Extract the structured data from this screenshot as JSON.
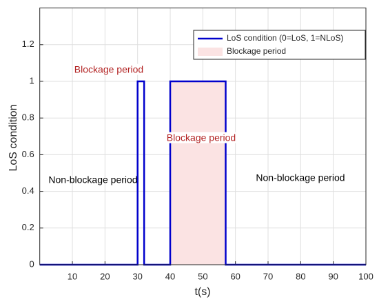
{
  "chart_data": {
    "type": "line",
    "x_label": "t(s)",
    "y_label": "LoS condition",
    "x": [
      0,
      30,
      30,
      32,
      32,
      40,
      40,
      57,
      57,
      100
    ],
    "series": [
      {
        "name": "LoS condition (0=LoS, 1=NLoS)",
        "color": "#0000cc",
        "values": [
          0,
          0,
          1,
          1,
          0,
          0,
          1,
          1,
          0,
          0
        ]
      }
    ],
    "spans": [
      {
        "name": "Blockage period",
        "color": "#fbe3e3",
        "x": [
          40,
          57
        ],
        "y": [
          0,
          1
        ]
      }
    ],
    "annotations": [
      {
        "text": "Blockage period",
        "color": "#b22222"
      },
      {
        "text": "Blockage period",
        "color": "#b22222"
      },
      {
        "text": "Non-blockage period",
        "color": "#000000"
      },
      {
        "text": "Non-blockage period",
        "color": "#000000"
      }
    ],
    "xlim": [
      0,
      100
    ],
    "xticks": [
      10,
      20,
      30,
      40,
      50,
      60,
      70,
      80,
      90,
      100
    ],
    "ylim": [
      0,
      1.4
    ],
    "yticks": [
      0,
      0.2,
      0.4,
      0.6,
      0.8,
      1,
      1.2
    ],
    "grid": true,
    "legend": "upper right"
  }
}
